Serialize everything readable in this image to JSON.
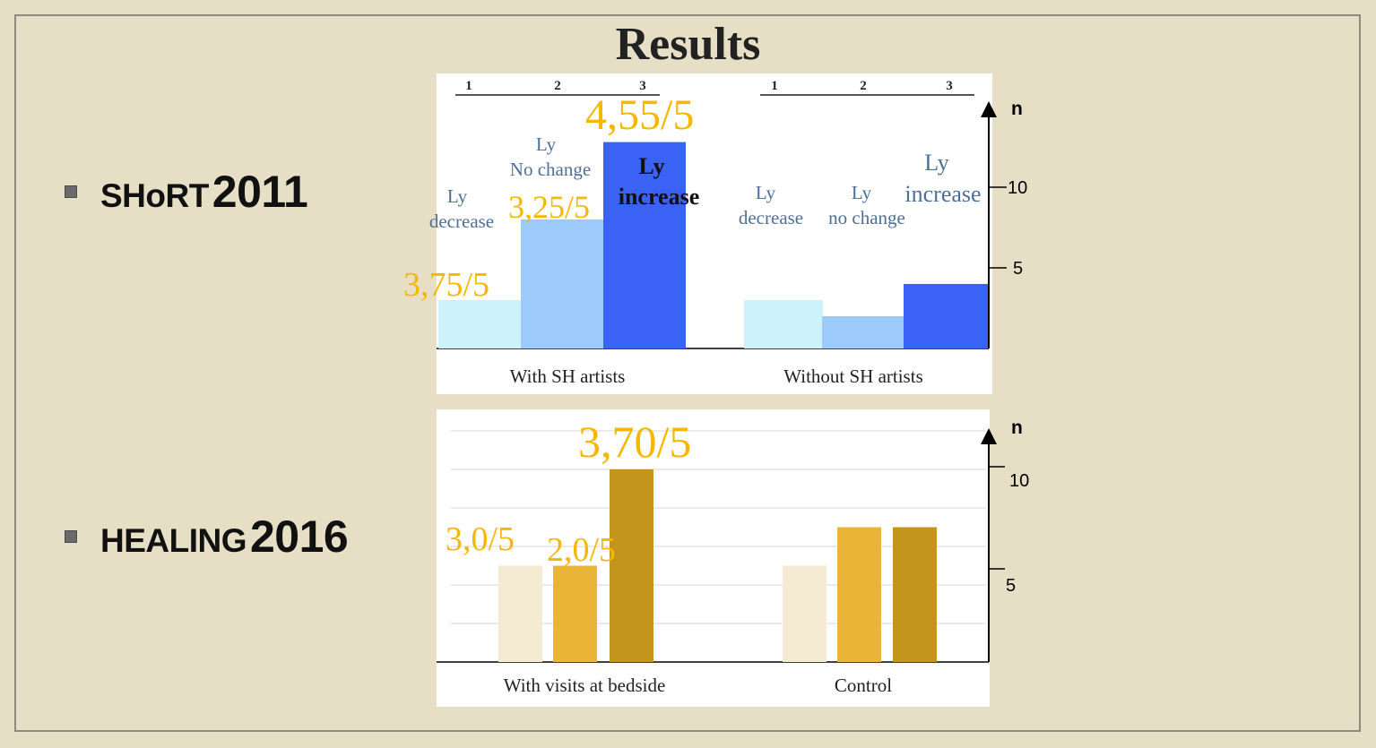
{
  "slide": {
    "title": "Results",
    "bullets": [
      {
        "name_small": "SHoRT",
        "year": "2011"
      },
      {
        "name_small": "HEALING",
        "year": "2016"
      }
    ]
  },
  "chart_data": [
    {
      "type": "bar",
      "y_axis_label": "n",
      "ylim": [
        0,
        13
      ],
      "yticks": [
        5,
        10
      ],
      "groups": [
        "With SH  artists",
        "Without SH artists"
      ],
      "group_ticks": [
        [
          "1",
          "2",
          "3"
        ],
        [
          "1",
          "2",
          "3"
        ]
      ],
      "series": [
        {
          "name": "Ly decrease",
          "values": [
            3,
            3
          ],
          "color": "#ccf3fb"
        },
        {
          "name": "Ly No change",
          "values": [
            8,
            2
          ],
          "color": "#9ccbfb"
        },
        {
          "name": "Ly increase",
          "values": [
            12.8,
            4
          ],
          "color": "#3a63f5"
        }
      ],
      "category_labels": {
        "with": [
          [
            "Ly",
            "decrease"
          ],
          [
            "Ly",
            "No change"
          ],
          [
            "Ly",
            "increase"
          ]
        ],
        "without": [
          [
            "Ly",
            "decrease"
          ],
          [
            "Ly",
            "no change"
          ],
          [
            "Ly",
            "increase"
          ]
        ]
      },
      "scores": [
        "3,75/5",
        "3,25/5",
        "4,55/5"
      ]
    },
    {
      "type": "bar",
      "y_axis_label": "n",
      "ylim": [
        0,
        11.5
      ],
      "yticks": [
        5,
        10
      ],
      "groups": [
        "With visits at bedside",
        "Control"
      ],
      "series": [
        {
          "values": [
            5,
            5
          ],
          "color": "#f5ead2"
        },
        {
          "values": [
            5,
            7
          ],
          "color": "#e9b437"
        },
        {
          "values": [
            10,
            7
          ],
          "color": "#c4951c"
        }
      ],
      "scores": [
        "3,0/5",
        "2,0/5",
        "3,70/5"
      ]
    }
  ]
}
